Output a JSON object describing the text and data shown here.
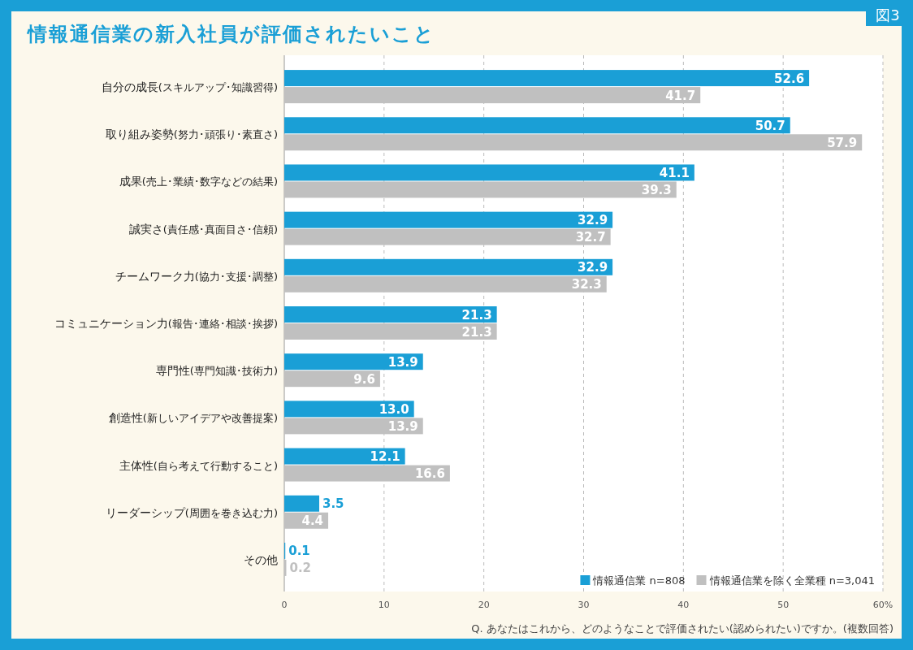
{
  "chart_data": {
    "type": "bar",
    "orientation": "horizontal",
    "title": "情報通信業の新入社員が評価されたいこと",
    "categories": [
      "自分の成長(スキルアップ･知識習得)",
      "取り組み姿勢(努力･頑張り･素直さ)",
      "成果(売上･業績･数字などの結果)",
      "誠実さ(責任感･真面目さ･信頼)",
      "チームワーク力(協力･支援･調整)",
      "コミュニケーション力(報告･連絡･相談･挨拶)",
      "専門性(専門知識･技術力)",
      "創造性(新しいアイデアや改善提案)",
      "主体性(自ら考えて行動すること)",
      "リーダーシップ(周囲を巻き込む力)",
      "その他"
    ],
    "series": [
      {
        "name": "情報通信業 n=808",
        "color": "#1a9fd6",
        "values": [
          52.6,
          50.7,
          41.1,
          32.9,
          32.9,
          21.3,
          13.9,
          13.0,
          12.1,
          3.5,
          0.1
        ],
        "value_labels": [
          "52.6",
          "50.7",
          "41.1",
          "32.9",
          "32.9",
          "21.3",
          "13.9",
          "13.0",
          "12.1",
          "3.5",
          "0.1"
        ]
      },
      {
        "name": "情報通信業を除く全業種 n=3,041",
        "color": "#c0c0c0",
        "values": [
          41.7,
          57.9,
          39.3,
          32.7,
          32.3,
          21.3,
          9.6,
          13.9,
          16.6,
          4.4,
          0.2
        ],
        "value_labels": [
          "41.7",
          "57.9",
          "39.3",
          "32.7",
          "32.3",
          "21.3",
          "9.6",
          "13.9",
          "16.6",
          "4.4",
          "0.2"
        ]
      }
    ],
    "xlim": [
      0,
      60
    ],
    "xticks": [
      0,
      10,
      20,
      30,
      40,
      50,
      {
        "value": 60,
        "label": "60%"
      }
    ],
    "grid": "x",
    "legend": "bottom right",
    "annotations": [
      "図3",
      "Q. あなたはこれから、どのようなことで評価されたい(認められたい)ですか。(複数回答)"
    ]
  }
}
